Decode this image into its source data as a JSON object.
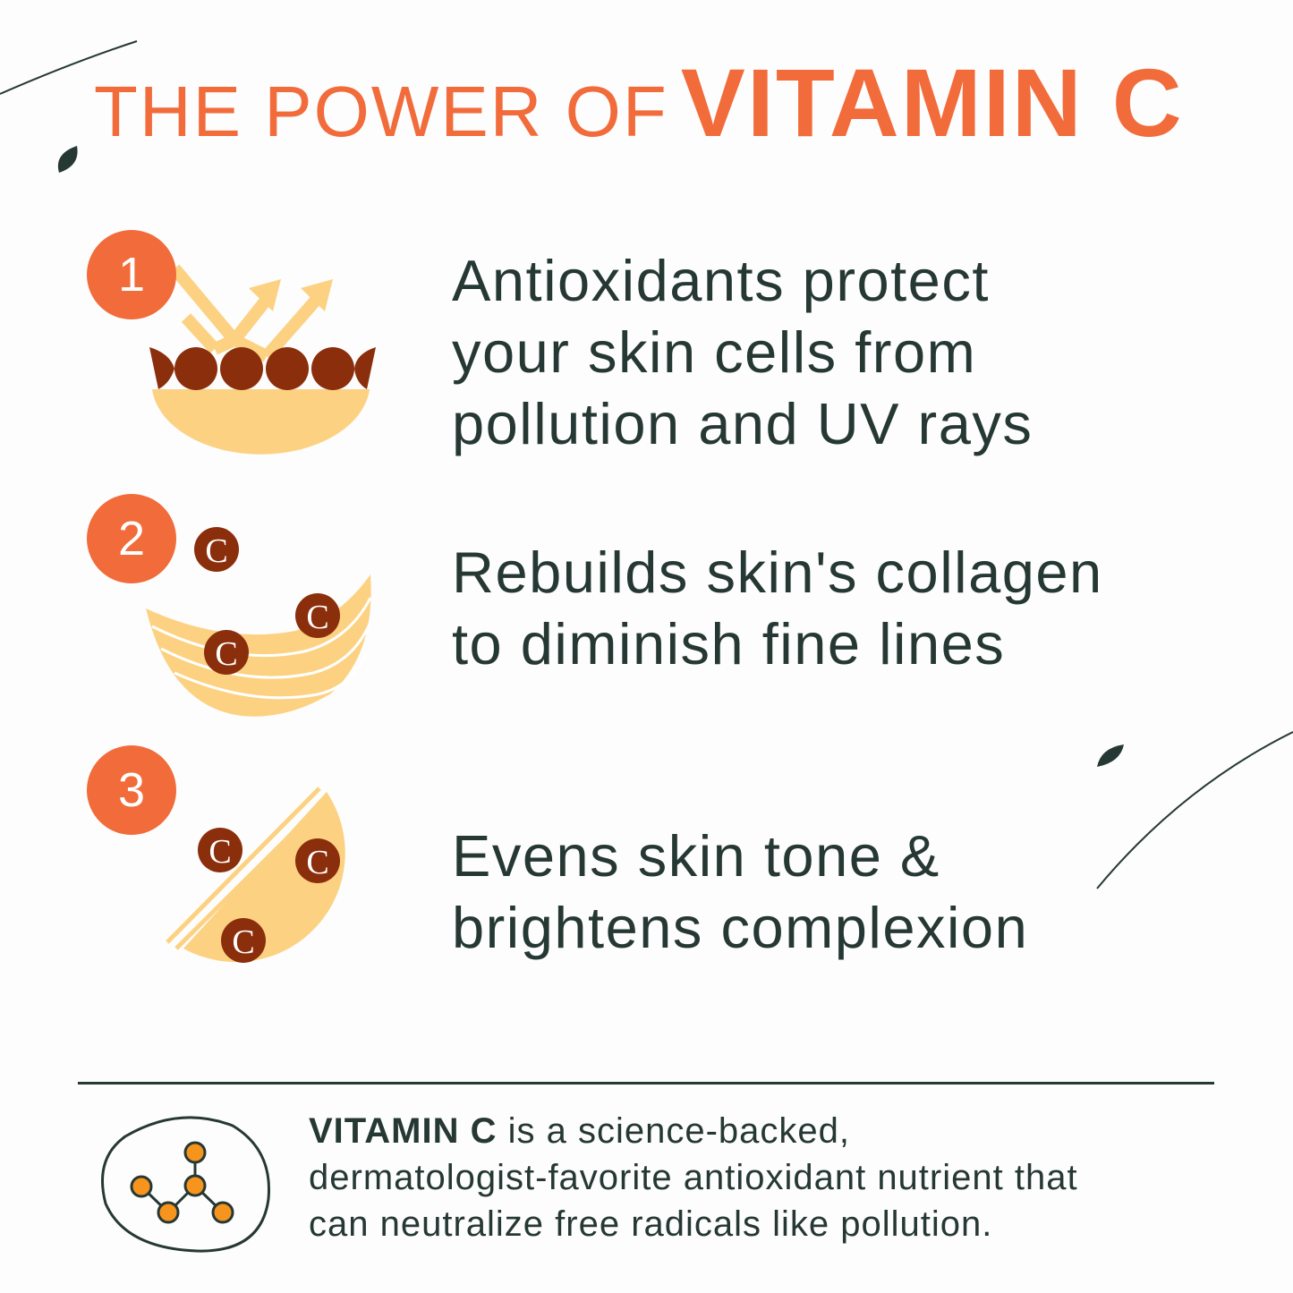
{
  "title": {
    "prefix": "THE POWER OF",
    "highlight": "VITAMIN C"
  },
  "colors": {
    "accent": "#f26b3a",
    "text": "#263834",
    "skin": "#fcd282",
    "cell": "#8a2e0c",
    "molecule": "#f7941d"
  },
  "benefits": [
    {
      "number": "1",
      "icon": "skin-barrier-reflecting-rays-icon",
      "lines": [
        "Antioxidants protect",
        "your skin cells from",
        "pollution and UV rays"
      ]
    },
    {
      "number": "2",
      "icon": "collagen-layers-vitamin-c-icon",
      "badge": "C",
      "lines": [
        "Rebuilds skin's collagen",
        "to diminish fine lines"
      ]
    },
    {
      "number": "3",
      "icon": "brightening-skin-vitamin-c-icon",
      "badge": "C",
      "lines": [
        "Evens skin tone &",
        "brightens complexion"
      ]
    }
  ],
  "footer": {
    "icon": "molecule-icon",
    "bold": "VITAMIN C",
    "line1_rest": " is a science-backed,",
    "line2": "dermatologist-favorite antioxidant nutrient that",
    "line3": "can neutralize free radicals like pollution."
  }
}
